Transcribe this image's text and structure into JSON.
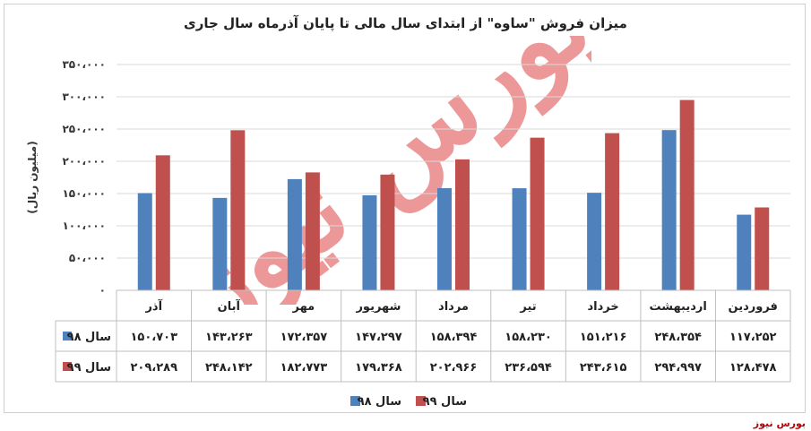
{
  "title": "میزان فروش \"ساوه\" از ابتدای سال مالی تا پایان آذرماه سال جاری",
  "source_label": "بورس نیوز",
  "watermark_text": "بورس نیوز",
  "chart_data": {
    "type": "bar",
    "title": "میزان فروش \"ساوه\" از ابتدای سال مالی تا پایان آذرماه سال جاری",
    "ylabel": "(میلیون ریال)",
    "xlabel": "",
    "ylim": [
      0,
      350000
    ],
    "yticks": [
      0,
      50000,
      100000,
      150000,
      200000,
      250000,
      300000,
      350000
    ],
    "ytick_labels": [
      "۰",
      "۵۰،۰۰۰",
      "۱۰۰،۰۰۰",
      "۱۵۰،۰۰۰",
      "۲۰۰،۰۰۰",
      "۲۵۰،۰۰۰",
      "۳۰۰،۰۰۰",
      "۳۵۰،۰۰۰"
    ],
    "grid": true,
    "legend_position": "bottom",
    "categories": [
      "فروردین",
      "اردیبهشت",
      "خرداد",
      "تیر",
      "مرداد",
      "شهریور",
      "مهر",
      "آبان",
      "آذر"
    ],
    "series": [
      {
        "name": "سال ۹۸",
        "color": "#4f81bd",
        "values": [
          117252,
          248354,
          151216,
          158230,
          158394,
          147297,
          172357,
          143263,
          150703
        ],
        "labels": [
          "۱۱۷،۲۵۲",
          "۲۴۸،۳۵۴",
          "۱۵۱،۲۱۶",
          "۱۵۸،۲۳۰",
          "۱۵۸،۳۹۴",
          "۱۴۷،۲۹۷",
          "۱۷۲،۳۵۷",
          "۱۴۳،۲۶۳",
          "۱۵۰،۷۰۳"
        ]
      },
      {
        "name": "سال ۹۹",
        "color": "#c0504d",
        "values": [
          128478,
          294997,
          243615,
          236594,
          202966,
          179368,
          182773,
          248142,
          209289
        ],
        "labels": [
          "۱۲۸،۴۷۸",
          "۲۹۴،۹۹۷",
          "۲۴۳،۶۱۵",
          "۲۳۶،۵۹۴",
          "۲۰۲،۹۶۶",
          "۱۷۹،۳۶۸",
          "۱۸۲،۷۷۳",
          "۲۴۸،۱۴۲",
          "۲۰۹،۲۸۹"
        ]
      }
    ]
  }
}
